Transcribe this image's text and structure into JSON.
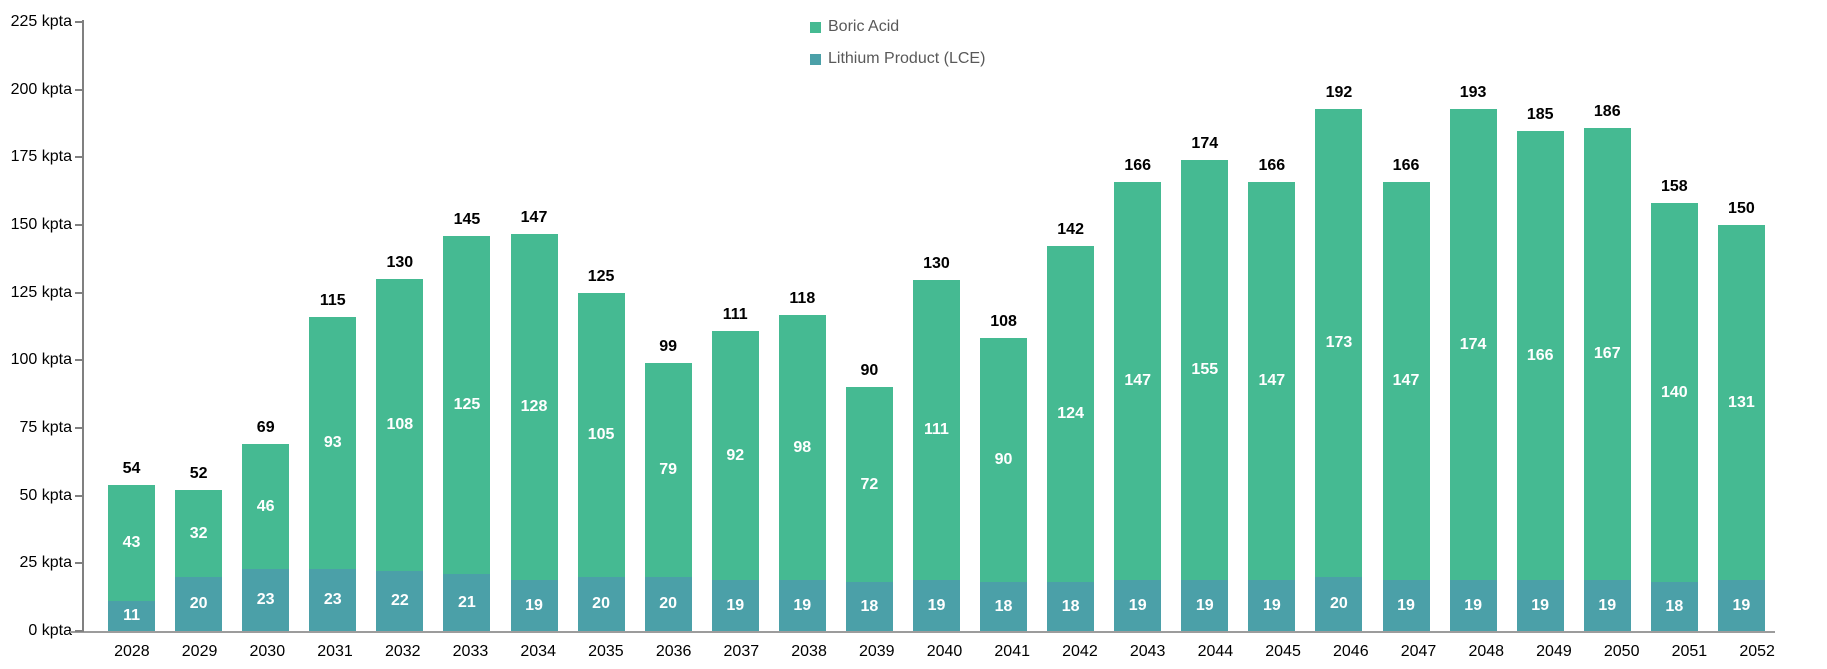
{
  "chart_data": {
    "type": "bar",
    "stacked": true,
    "unit": "kpta",
    "grid": false,
    "legend_position": "top-center",
    "ylim": [
      0,
      225
    ],
    "yticks": [
      0,
      25,
      50,
      75,
      100,
      125,
      150,
      175,
      200,
      225
    ],
    "categories": [
      "2028",
      "2029",
      "2030",
      "2031",
      "2032",
      "2033",
      "2034",
      "2035",
      "2036",
      "2037",
      "2038",
      "2039",
      "2040",
      "2041",
      "2042",
      "2043",
      "2044",
      "2045",
      "2046",
      "2047",
      "2048",
      "2049",
      "2050",
      "2051",
      "2052"
    ],
    "series": [
      {
        "name": "Lithium Product (LCE)",
        "color": "#4BA0A8",
        "values": [
          11,
          20,
          23,
          23,
          22,
          21,
          19,
          20,
          20,
          19,
          19,
          18,
          19,
          18,
          18,
          19,
          19,
          19,
          20,
          19,
          19,
          19,
          19,
          18,
          19
        ]
      },
      {
        "name": "Boric Acid",
        "color": "#45BA92",
        "values": [
          43,
          32,
          46,
          93,
          108,
          125,
          128,
          105,
          79,
          92,
          98,
          72,
          111,
          90,
          124,
          147,
          155,
          147,
          173,
          147,
          174,
          166,
          167,
          140,
          131
        ]
      }
    ],
    "totals": [
      54,
      52,
      69,
      115,
      130,
      145,
      147,
      125,
      99,
      111,
      118,
      90,
      130,
      108,
      142,
      166,
      174,
      166,
      192,
      166,
      193,
      185,
      186,
      158,
      150
    ]
  },
  "styles": {
    "total_label_color": "#000000",
    "inner_label_color": "#ffffff",
    "axis_label_color": "#000000",
    "legend_text_color": "#595959",
    "y_axis_line_color": "#808080",
    "x_axis_line_color": "#9c9c9c"
  }
}
